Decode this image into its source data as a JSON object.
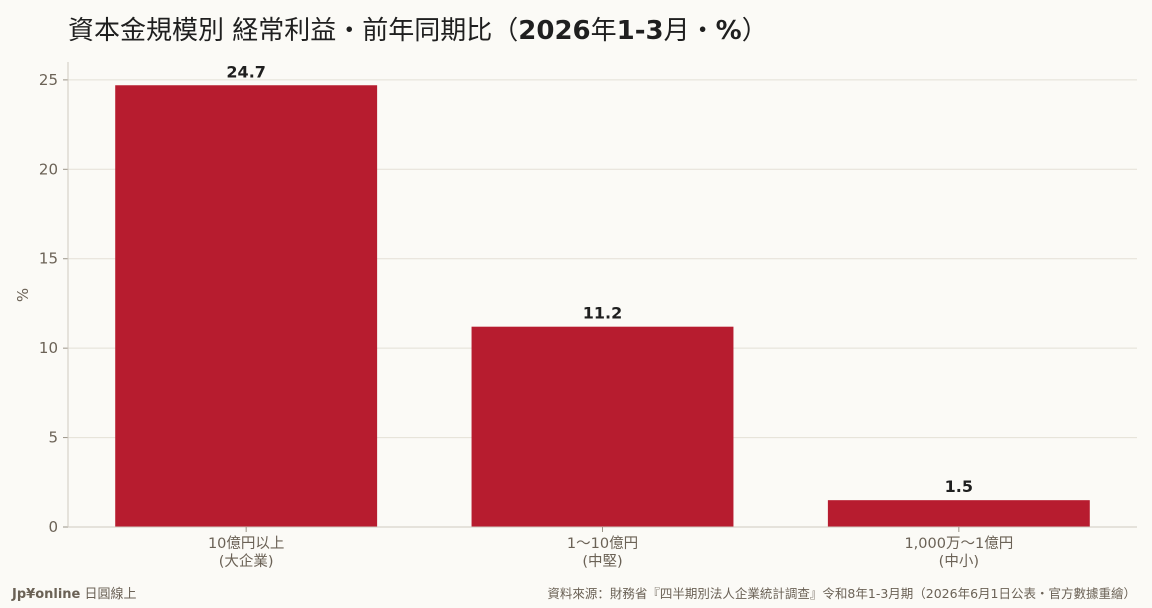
{
  "header": {
    "title_prefix": "資本金規模別 経常利益・前年同期比（",
    "title_bold_1": "2026",
    "title_mid_1": "年",
    "title_bold_2": "1-3",
    "title_mid_2": "月・",
    "title_bold_3": "%",
    "title_suffix": "）"
  },
  "chart_data": {
    "type": "bar",
    "categories": [
      [
        "10億円以上",
        "(大企業)"
      ],
      [
        "1〜10億円",
        "(中堅)"
      ],
      [
        "1,000万〜1億円",
        "(中小)"
      ]
    ],
    "values": [
      24.7,
      11.2,
      1.5
    ],
    "value_labels": [
      "24.7",
      "11.2",
      "1.5"
    ],
    "ylabel": "%",
    "ylim": [
      0,
      26
    ],
    "yticks": [
      0,
      5,
      10,
      15,
      20,
      25
    ],
    "grid": true,
    "bar_color": "#b71c2f"
  },
  "footer": {
    "brand": "Jp¥online",
    "brand_sub": " 日圓線上",
    "source": "資料來源：財務省『四半期別法人企業統計調查』令和8年1-3月期（2026年6月1日公表・官方數據重繪）"
  }
}
